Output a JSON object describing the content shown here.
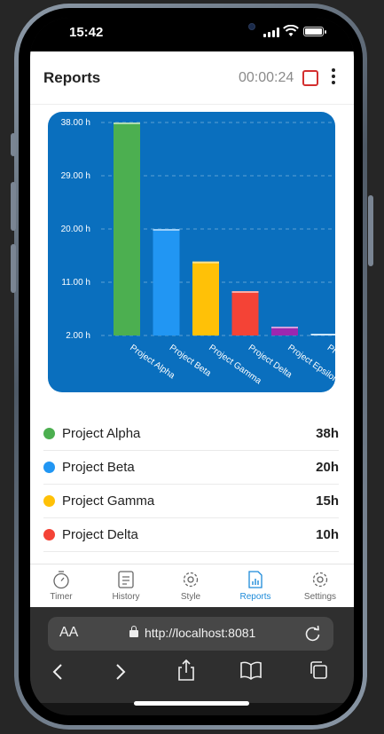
{
  "status_bar": {
    "time": "15:42"
  },
  "header": {
    "title": "Reports",
    "elapsed": "00:00:24"
  },
  "chart_data": {
    "type": "bar",
    "categories": [
      "Project Alpha",
      "Project Beta",
      "Project Gamma",
      "Project Delta",
      "Project Epsilon",
      "Project …"
    ],
    "values": [
      38,
      20,
      14.5,
      9.5,
      3.5,
      0.5
    ],
    "colors": [
      "#4caf50",
      "#2196f3",
      "#ffc107",
      "#f44336",
      "#9c27b0",
      "#90caf9"
    ],
    "yticks": [
      "38.00 h",
      "29.00 h",
      "20.00 h",
      "11.00 h",
      "2.00 h"
    ],
    "ytick_values": [
      38,
      29,
      20,
      11,
      2
    ],
    "ylim": [
      2,
      38
    ],
    "grid": true,
    "title": "",
    "xlabel": "",
    "ylabel": ""
  },
  "legend": [
    {
      "name": "Project Alpha",
      "hours": "38h",
      "color": "#4caf50"
    },
    {
      "name": "Project Beta",
      "hours": "20h",
      "color": "#2196f3"
    },
    {
      "name": "Project Gamma",
      "hours": "15h",
      "color": "#ffc107"
    },
    {
      "name": "Project Delta",
      "hours": "10h",
      "color": "#f44336"
    }
  ],
  "tabs": [
    {
      "label": "Timer",
      "icon": "stopwatch-icon"
    },
    {
      "label": "History",
      "icon": "history-icon"
    },
    {
      "label": "Style",
      "icon": "style-gear-icon"
    },
    {
      "label": "Reports",
      "icon": "report-icon",
      "active": true
    },
    {
      "label": "Settings",
      "icon": "settings-gear-icon"
    }
  ],
  "browser": {
    "text_size_label": "AA",
    "url": "http://localhost:8081"
  },
  "accent_color": "#1c8ad9"
}
